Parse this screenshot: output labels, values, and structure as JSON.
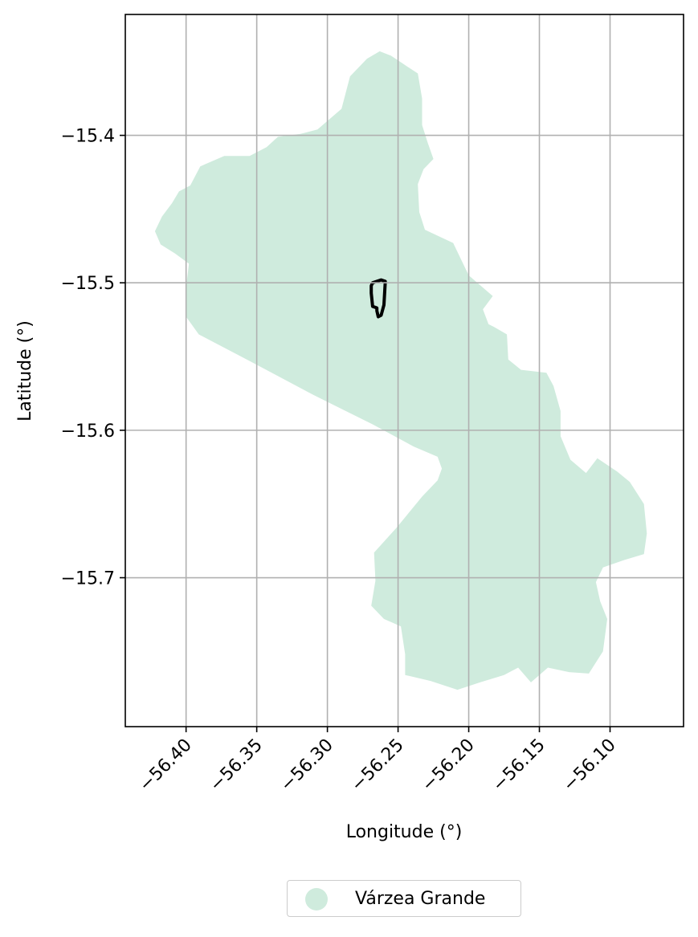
{
  "chart_data": {
    "type": "map",
    "xlabel": "Longitude (°)",
    "ylabel": "Latitude (°)",
    "xlim": [
      -56.443,
      -56.048
    ],
    "ylim": [
      -15.801,
      -15.318
    ],
    "xticks": [
      -56.4,
      -56.35,
      -56.3,
      -56.25,
      -56.2,
      -56.15,
      -56.1
    ],
    "xtick_labels": [
      "−56.40",
      "−56.35",
      "−56.30",
      "−56.25",
      "−56.20",
      "−56.15",
      "−56.10"
    ],
    "yticks": [
      -15.4,
      -15.5,
      -15.6,
      -15.7
    ],
    "ytick_labels": [
      "−15.4",
      "−15.5",
      "−15.6",
      "−15.7"
    ],
    "grid": true,
    "legend_position": "below",
    "series": [
      {
        "name": "Várzea Grande",
        "kind": "polygon",
        "color": "#cfebdd",
        "coordinates": [
          [
            -56.263,
            -15.343
          ],
          [
            -56.255,
            -15.346
          ],
          [
            -56.244,
            -15.353
          ],
          [
            -56.236,
            -15.358
          ],
          [
            -56.233,
            -15.375
          ],
          [
            -56.233,
            -15.393
          ],
          [
            -56.229,
            -15.405
          ],
          [
            -56.225,
            -15.416
          ],
          [
            -56.232,
            -15.423
          ],
          [
            -56.236,
            -15.433
          ],
          [
            -56.235,
            -15.452
          ],
          [
            -56.231,
            -15.464
          ],
          [
            -56.22,
            -15.469
          ],
          [
            -56.211,
            -15.473
          ],
          [
            -56.206,
            -15.483
          ],
          [
            -56.2,
            -15.495
          ],
          [
            -56.183,
            -15.509
          ],
          [
            -56.19,
            -15.518
          ],
          [
            -56.186,
            -15.528
          ],
          [
            -56.182,
            -15.53
          ],
          [
            -56.173,
            -15.535
          ],
          [
            -56.172,
            -15.552
          ],
          [
            -56.163,
            -15.559
          ],
          [
            -56.145,
            -15.561
          ],
          [
            -56.14,
            -15.57
          ],
          [
            -56.135,
            -15.587
          ],
          [
            -56.135,
            -15.604
          ],
          [
            -56.128,
            -15.62
          ],
          [
            -56.117,
            -15.629
          ],
          [
            -56.109,
            -15.619
          ],
          [
            -56.095,
            -15.628
          ],
          [
            -56.086,
            -15.635
          ],
          [
            -56.076,
            -15.65
          ],
          [
            -56.074,
            -15.67
          ],
          [
            -56.076,
            -15.684
          ],
          [
            -56.09,
            -15.688
          ],
          [
            -56.105,
            -15.693
          ],
          [
            -56.11,
            -15.703
          ],
          [
            -56.107,
            -15.716
          ],
          [
            -56.102,
            -15.728
          ],
          [
            -56.105,
            -15.75
          ],
          [
            -56.115,
            -15.765
          ],
          [
            -56.129,
            -15.764
          ],
          [
            -56.144,
            -15.761
          ],
          [
            -56.156,
            -15.771
          ],
          [
            -56.165,
            -15.761
          ],
          [
            -56.175,
            -15.766
          ],
          [
            -56.192,
            -15.771
          ],
          [
            -56.208,
            -15.776
          ],
          [
            -56.227,
            -15.77
          ],
          [
            -56.245,
            -15.766
          ],
          [
            -56.245,
            -15.752
          ],
          [
            -56.248,
            -15.733
          ],
          [
            -56.26,
            -15.728
          ],
          [
            -56.269,
            -15.719
          ],
          [
            -56.266,
            -15.702
          ],
          [
            -56.267,
            -15.683
          ],
          [
            -56.251,
            -15.666
          ],
          [
            -56.233,
            -15.645
          ],
          [
            -56.222,
            -15.634
          ],
          [
            -56.219,
            -15.626
          ],
          [
            -56.222,
            -15.618
          ],
          [
            -56.239,
            -15.611
          ],
          [
            -56.268,
            -15.596
          ],
          [
            -56.31,
            -15.576
          ],
          [
            -56.355,
            -15.553
          ],
          [
            -56.391,
            -15.535
          ],
          [
            -56.4,
            -15.523
          ],
          [
            -56.4,
            -15.503
          ],
          [
            -56.398,
            -15.487
          ],
          [
            -56.408,
            -15.48
          ],
          [
            -56.418,
            -15.474
          ],
          [
            -56.422,
            -15.465
          ],
          [
            -56.417,
            -15.455
          ],
          [
            -56.41,
            -15.446
          ],
          [
            -56.405,
            -15.438
          ],
          [
            -56.397,
            -15.434
          ],
          [
            -56.39,
            -15.421
          ],
          [
            -56.373,
            -15.414
          ],
          [
            -56.355,
            -15.414
          ],
          [
            -56.343,
            -15.408
          ],
          [
            -56.335,
            -15.401
          ],
          [
            -56.319,
            -15.399
          ],
          [
            -56.307,
            -15.396
          ],
          [
            -56.29,
            -15.382
          ],
          [
            -56.284,
            -15.36
          ],
          [
            -56.272,
            -15.348
          ]
        ]
      },
      {
        "name": "",
        "kind": "outline",
        "color": "#000000",
        "coordinates": [
          [
            -56.268,
            -15.5
          ],
          [
            -56.262,
            -15.498
          ],
          [
            -56.259,
            -15.499
          ],
          [
            -56.26,
            -15.515
          ],
          [
            -56.262,
            -15.522
          ],
          [
            -56.264,
            -15.523
          ],
          [
            -56.265,
            -15.519
          ],
          [
            -56.265,
            -15.517
          ],
          [
            -56.268,
            -15.516
          ],
          [
            -56.269,
            -15.507
          ],
          [
            -56.269,
            -15.502
          ],
          [
            -56.268,
            -15.5
          ]
        ]
      }
    ]
  },
  "legend": {
    "items": [
      {
        "label": "Várzea Grande",
        "color": "#cfebdd"
      }
    ]
  }
}
